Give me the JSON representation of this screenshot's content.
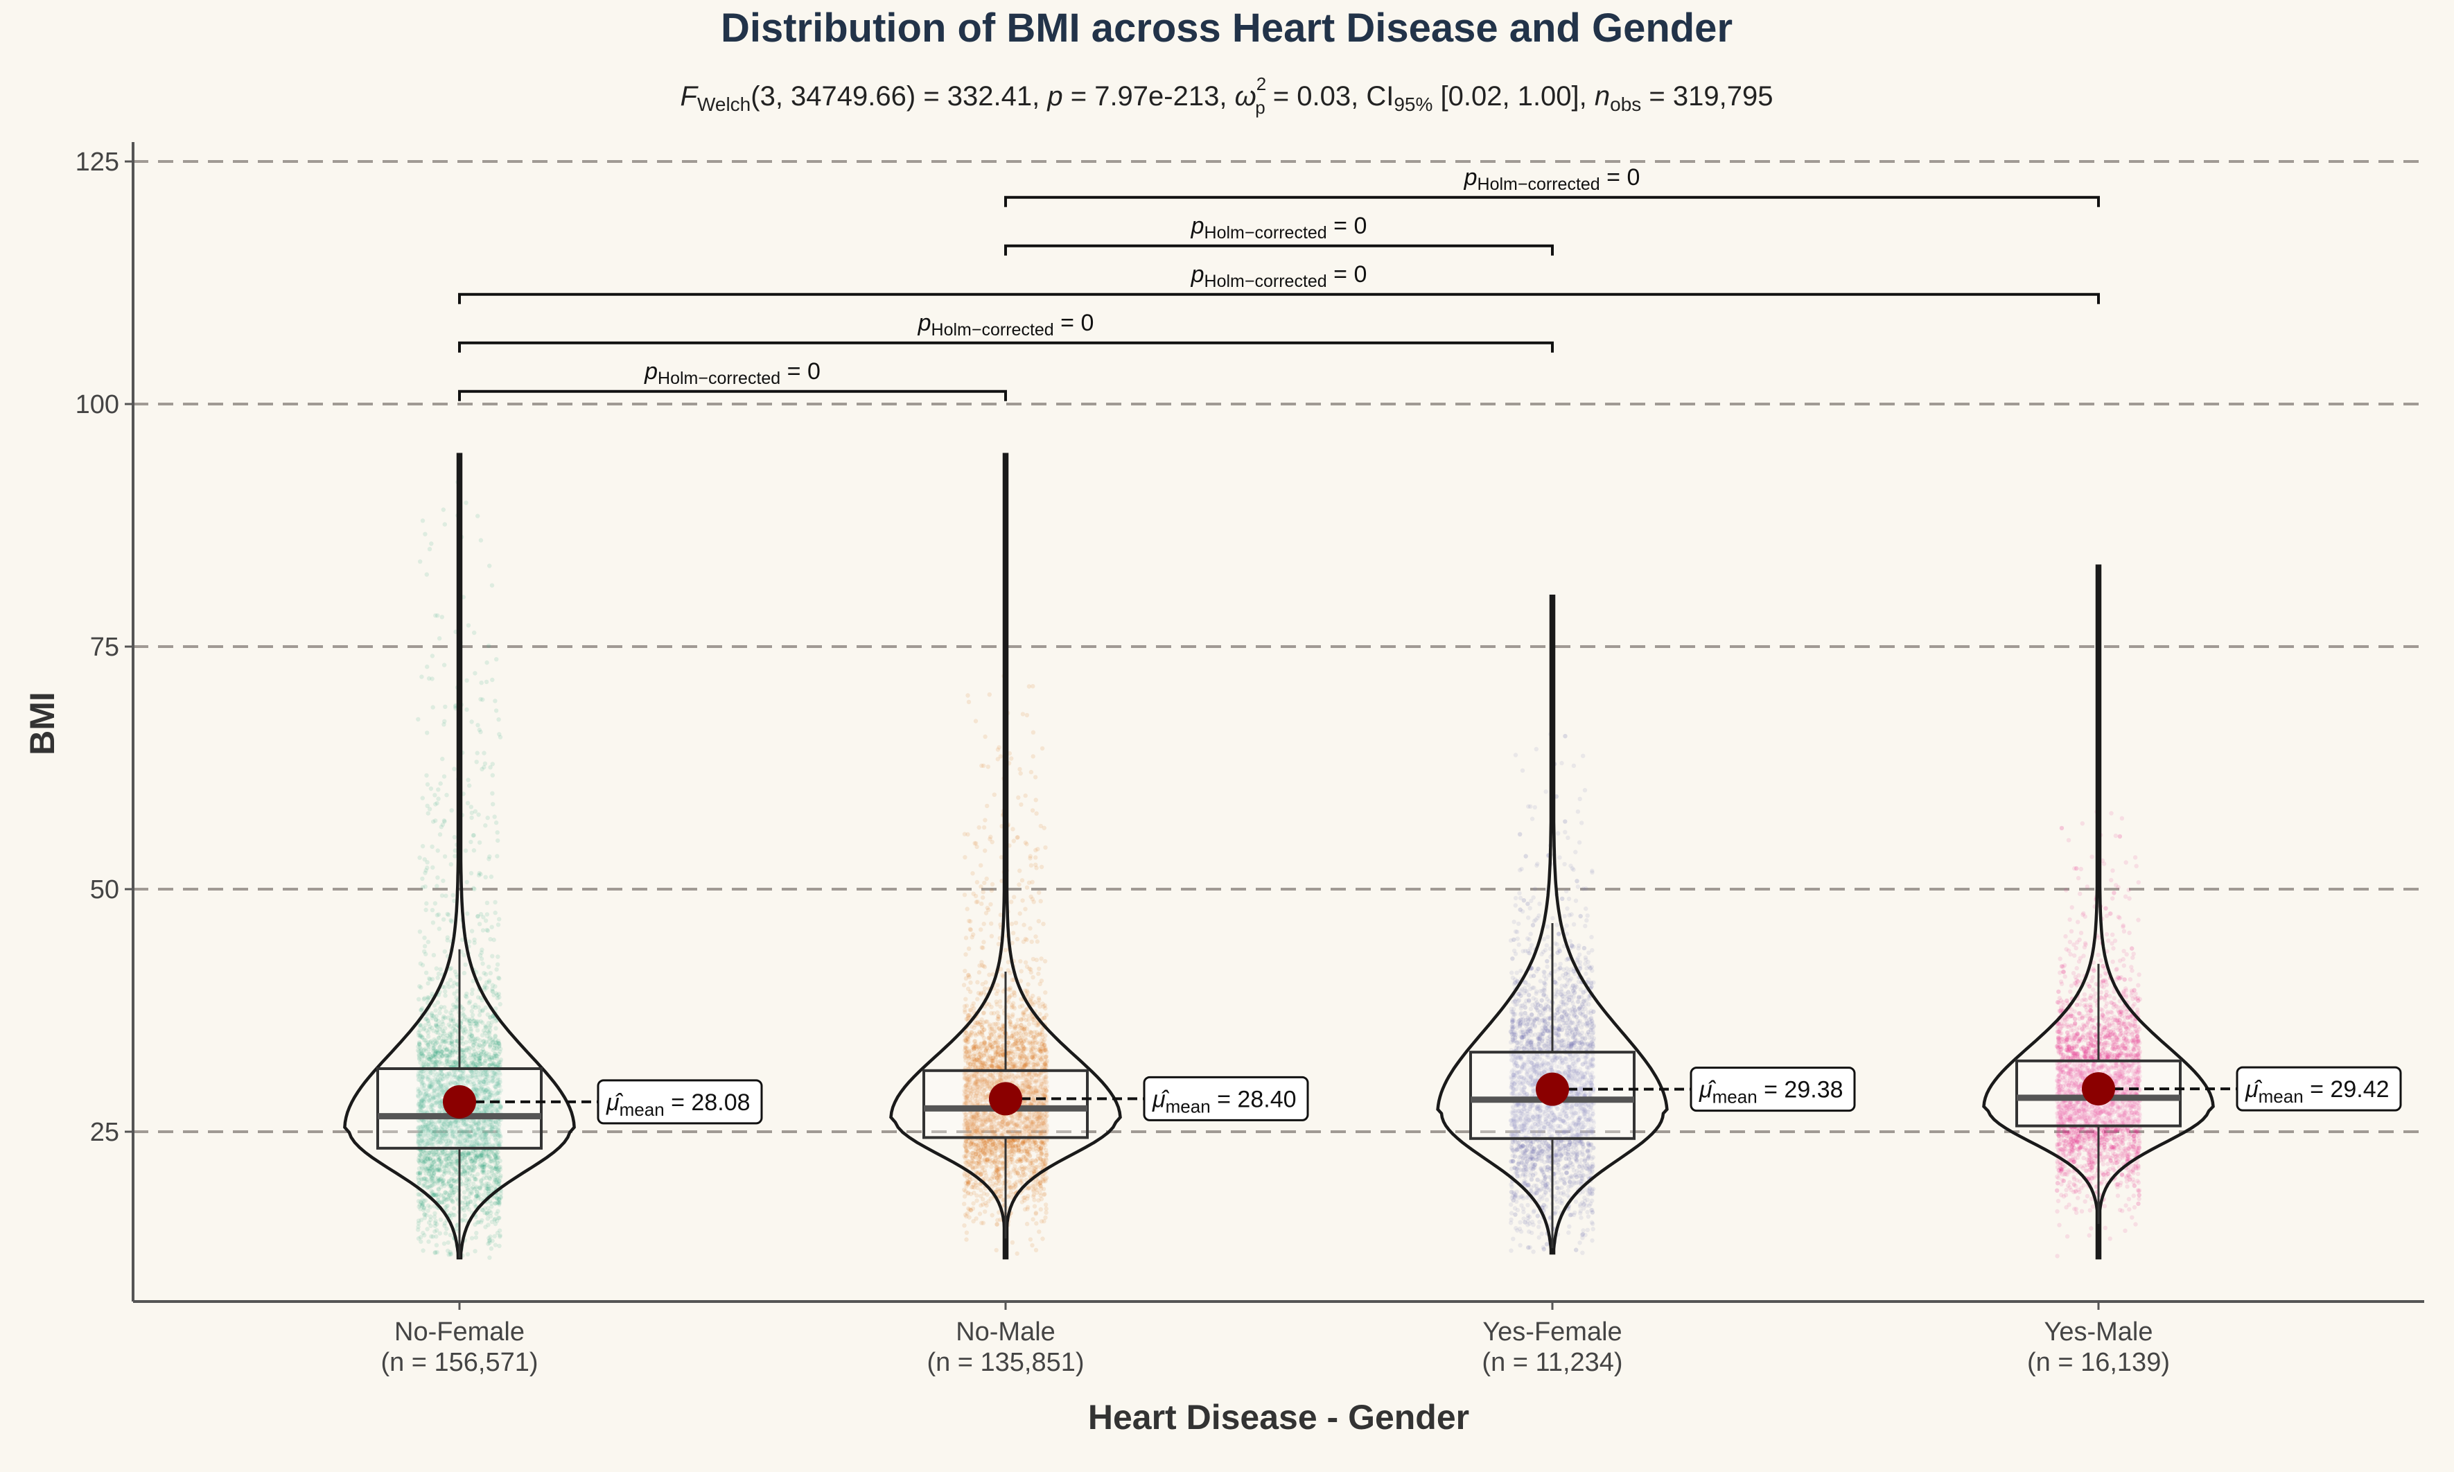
{
  "chart_data": {
    "type": "violin",
    "title": "Distribution of BMI across Heart Disease and Gender",
    "subtitle": {
      "F_label": "F",
      "F_sub": "Welch",
      "F_args": "(3, 34749.66)",
      "F_value": " = 332.41, ",
      "p_label": "p",
      "p_value": " = 7.97e-213, ",
      "omega_label": "ω",
      "omega_sup": "2",
      "omega_sub": "p",
      "omega_value": " = 0.03, CI",
      "ci_sub": "95%",
      "ci_value": " [0.02, 1.00], ",
      "n_label": "n",
      "n_sub": "obs",
      "n_value": " = 319,795"
    },
    "xlabel": "Heart Disease - Gender",
    "ylabel": "BMI",
    "ylim": [
      7.5,
      127
    ],
    "yticks": [
      25,
      50,
      75,
      100,
      125
    ],
    "grid": "horizontal dashed",
    "groups": [
      {
        "name": "No-Female",
        "n_label": "(n = 156,571)",
        "color": "#1b9e77",
        "mean": 28.08,
        "mean_label": "28.08",
        "median": 26.6,
        "q1": 23.3,
        "q3": 31.5,
        "whisker_low": 12.0,
        "whisker_high": 43.8,
        "min": 12.0,
        "max": 94.8,
        "point_max": 92
      },
      {
        "name": "No-Male",
        "n_label": "(n = 135,851)",
        "color": "#d95f02",
        "mean": 28.4,
        "mean_label": "28.40",
        "median": 27.4,
        "q1": 24.4,
        "q3": 31.3,
        "whisker_low": 14.0,
        "whisker_high": 41.5,
        "min": 12.0,
        "max": 94.8,
        "point_max": 72
      },
      {
        "name": "Yes-Female",
        "n_label": "(n = 11,234)",
        "color": "#7570b3",
        "mean": 29.38,
        "mean_label": "29.38",
        "median": 28.3,
        "q1": 24.3,
        "q3": 33.2,
        "whisker_low": 13.0,
        "whisker_high": 46.5,
        "min": 12.5,
        "max": 80.2,
        "point_max": 66
      },
      {
        "name": "Yes-Male",
        "n_label": "(n = 16,139)",
        "color": "#e7298a",
        "mean": 29.42,
        "mean_label": "29.42",
        "median": 28.5,
        "q1": 25.6,
        "q3": 32.3,
        "whisker_low": 15.5,
        "whisker_high": 42.3,
        "min": 12.0,
        "max": 83.3,
        "point_max": 58
      }
    ],
    "mean_label_prefix": "μ̂",
    "mean_label_sub": "mean",
    "comparisons": [
      {
        "from": 0,
        "to": 1,
        "y": 101.3,
        "p_label": "p",
        "p_sub": "Holm−corrected",
        "p_value": " = 0"
      },
      {
        "from": 0,
        "to": 2,
        "y": 106.3,
        "p_label": "p",
        "p_sub": "Holm−corrected",
        "p_value": " = 0"
      },
      {
        "from": 0,
        "to": 3,
        "y": 111.3,
        "p_label": "p",
        "p_sub": "Holm−corrected",
        "p_value": " = 0"
      },
      {
        "from": 1,
        "to": 2,
        "y": 116.3,
        "p_label": "p",
        "p_sub": "Holm−corrected",
        "p_value": " = 0"
      },
      {
        "from": 1,
        "to": 3,
        "y": 121.3,
        "p_label": "p",
        "p_sub": "Holm−corrected",
        "p_value": " = 0"
      }
    ]
  }
}
